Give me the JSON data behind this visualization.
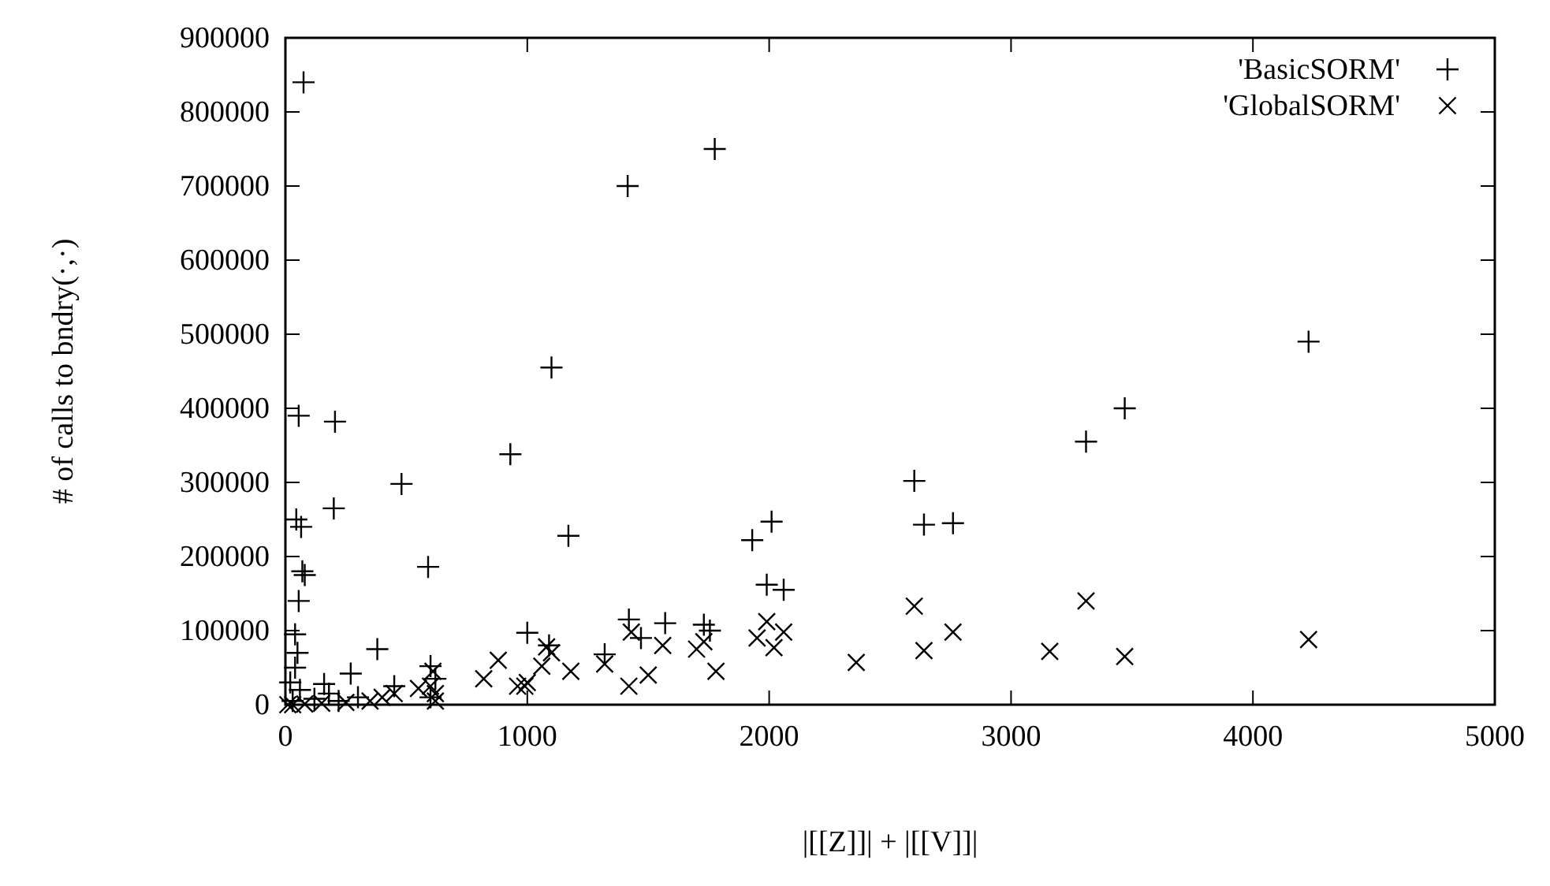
{
  "chart_data": {
    "type": "scatter",
    "xlabel": "|[[Z]]| + |[[V]]|",
    "ylabel": "# of calls to bndry(·,·)",
    "xlim": [
      0,
      5000
    ],
    "ylim": [
      0,
      900000
    ],
    "xticks": [
      0,
      1000,
      2000,
      3000,
      4000,
      5000
    ],
    "yticks": [
      0,
      100000,
      200000,
      300000,
      400000,
      500000,
      600000,
      700000,
      800000,
      900000
    ],
    "legend": "top right",
    "grid": false,
    "series": [
      {
        "name": "'BasicSORM'",
        "color": "#000000",
        "marker": "cross",
        "x": [
          75,
          1415,
          1775,
          1100,
          4230,
          3470,
          3310,
          55,
          205,
          930,
          480,
          200,
          2600,
          2010,
          2760,
          2640,
          1930,
          1170,
          45,
          65,
          590,
          70,
          80,
          55,
          40,
          2060,
          1990,
          1420,
          1000,
          1570,
          1730,
          1090,
          1320,
          1470,
          1755,
          380,
          270,
          600,
          50,
          40,
          20,
          160,
          180,
          450,
          620,
          300,
          120,
          30,
          600,
          60,
          220
        ],
        "values": [
          840000,
          700000,
          750000,
          455000,
          490000,
          400000,
          355000,
          390000,
          382000,
          338000,
          298000,
          265000,
          302000,
          247000,
          245000,
          243000,
          222000,
          228000,
          250000,
          240000,
          186000,
          180000,
          175000,
          140000,
          95000,
          155000,
          162000,
          115000,
          97000,
          110000,
          108000,
          80000,
          68000,
          90000,
          100000,
          75000,
          42000,
          52000,
          70000,
          50000,
          30000,
          28000,
          15000,
          25000,
          35000,
          10000,
          8000,
          5000,
          10000,
          20000,
          5000
        ]
      },
      {
        "name": "'GlobalSORM'",
        "color": "#000000",
        "marker": "x",
        "x": [
          4230,
          3470,
          3310,
          3160,
          2600,
          2760,
          2640,
          2360,
          2060,
          2020,
          1990,
          1950,
          1780,
          1730,
          1700,
          1560,
          1500,
          1430,
          1420,
          1320,
          1180,
          1100,
          1060,
          1000,
          960,
          990,
          880,
          820,
          1080,
          620,
          600,
          610,
          550,
          450,
          400,
          350,
          250,
          150,
          80,
          30,
          10,
          620
        ],
        "values": [
          88000,
          65000,
          140000,
          72000,
          133000,
          98000,
          73000,
          57000,
          98000,
          77000,
          112000,
          90000,
          45000,
          85000,
          75000,
          80000,
          40000,
          98000,
          25000,
          55000,
          45000,
          70000,
          52000,
          30000,
          25000,
          25000,
          60000,
          35000,
          78000,
          15000,
          25000,
          45000,
          22000,
          15000,
          10000,
          5000,
          3000,
          2000,
          1000,
          0,
          0,
          5000
        ]
      }
    ]
  }
}
